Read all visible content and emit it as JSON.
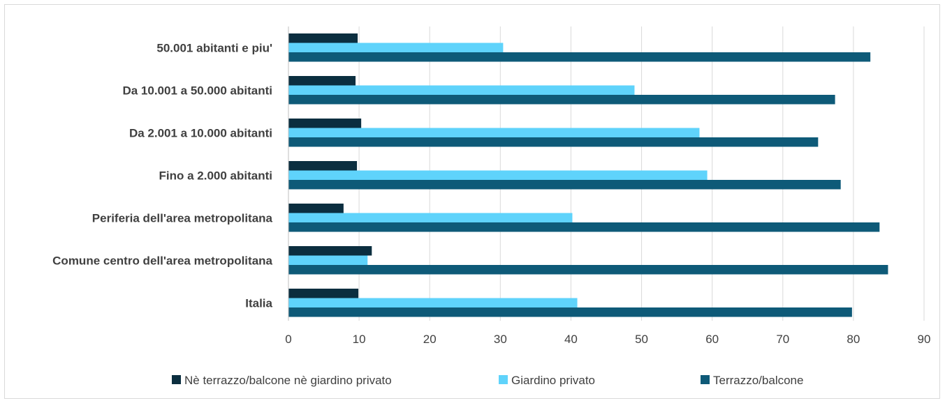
{
  "chart_data": {
    "type": "bar",
    "orientation": "horizontal",
    "categories": [
      "50.001 abitanti e piu'",
      "Da 10.001 a 50.000 abitanti",
      "Da 2.001 a 10.000 abitanti",
      "Fino a 2.000 abitanti",
      "Periferia dell'area metropolitana",
      "Comune centro dell'area metropolitana",
      "Italia"
    ],
    "series": [
      {
        "name": "Nè terrazzo/balcone nè giardino privato",
        "color": "#0b2e3f",
        "values": [
          9.8,
          9.5,
          10.3,
          9.7,
          7.8,
          11.8,
          9.9
        ]
      },
      {
        "name": "Giardino privato",
        "color": "#5fd3fb",
        "values": [
          30.4,
          49.0,
          58.2,
          59.3,
          40.2,
          11.2,
          40.9
        ]
      },
      {
        "name": "Terrazzo/balcone",
        "color": "#0e5a78",
        "values": [
          82.4,
          77.4,
          75.0,
          78.2,
          83.7,
          84.9,
          79.8
        ]
      }
    ],
    "x_ticks": [
      "0",
      "10",
      "20",
      "30",
      "40",
      "50",
      "60",
      "70",
      "80",
      "90"
    ],
    "xlim": [
      0,
      90
    ],
    "grid": true,
    "legend_position": "bottom"
  }
}
